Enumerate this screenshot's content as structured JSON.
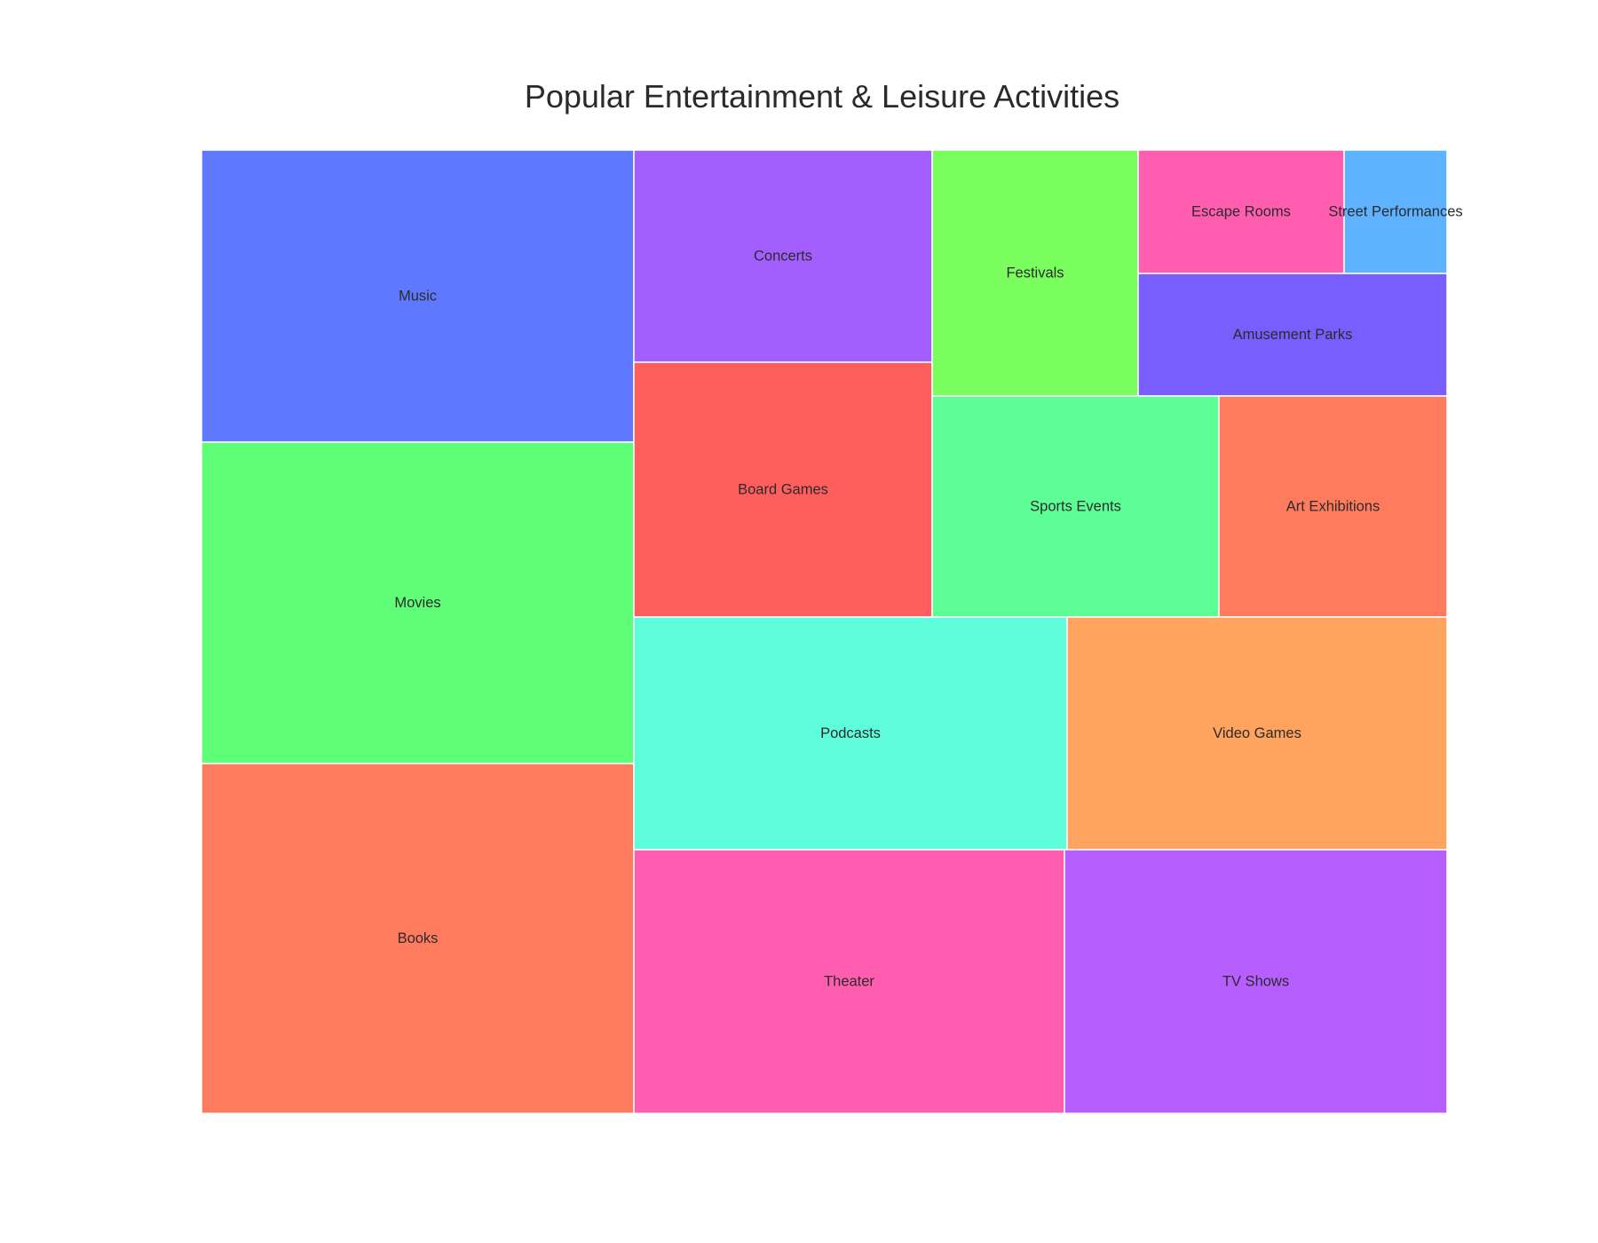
{
  "chart_data": {
    "type": "treemap",
    "title": "Popular Entertainment & Leisure Activities",
    "tiles": [
      {
        "label": "Music",
        "color": "#5f79fe"
      },
      {
        "label": "Movies",
        "color": "#5efe77"
      },
      {
        "label": "Books",
        "color": "#ff7b5e"
      },
      {
        "label": "Concerts",
        "color": "#a35efe"
      },
      {
        "label": "Board Games",
        "color": "#ff5e5e"
      },
      {
        "label": "Festivals",
        "color": "#7afe5e"
      },
      {
        "label": "Escape Rooms",
        "color": "#ff5eb0"
      },
      {
        "label": "Street Performances",
        "color": "#5eb2ff"
      },
      {
        "label": "Amusement Parks",
        "color": "#795efe"
      },
      {
        "label": "Sports Events",
        "color": "#5efe96"
      },
      {
        "label": "Art Exhibitions",
        "color": "#ff7b5e"
      },
      {
        "label": "Podcasts",
        "color": "#5efedc"
      },
      {
        "label": "Video Games",
        "color": "#ffa35e"
      },
      {
        "label": "Theater",
        "color": "#ff5eb0"
      },
      {
        "label": "TV Shows",
        "color": "#b75efe"
      }
    ]
  }
}
